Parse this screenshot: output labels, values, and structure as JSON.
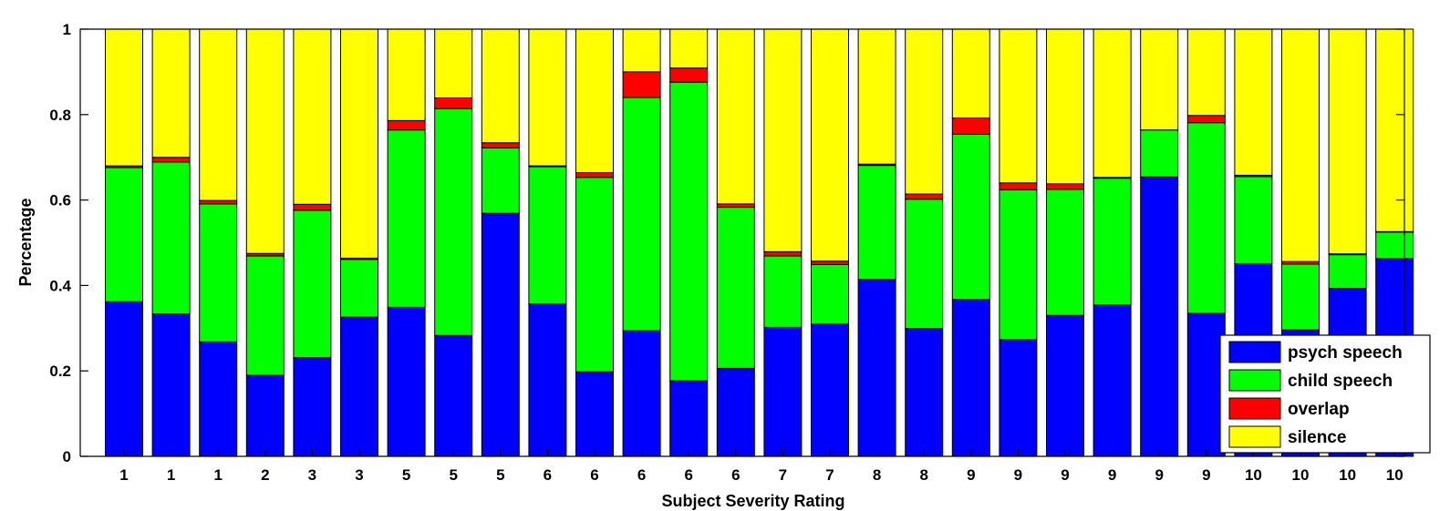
{
  "chart_data": {
    "type": "bar",
    "stacked": true,
    "xlabel": "Subject Severity Rating",
    "ylabel": "Percentage",
    "ylim": [
      0,
      1
    ],
    "yticks": [
      "0",
      "0.2",
      "0.4",
      "0.6",
      "0.8",
      "1"
    ],
    "categories": [
      "1",
      "1",
      "1",
      "2",
      "3",
      "3",
      "5",
      "5",
      "5",
      "6",
      "6",
      "6",
      "6",
      "6",
      "7",
      "7",
      "8",
      "8",
      "9",
      "9",
      "9",
      "9",
      "9",
      "9",
      "10",
      "10",
      "10",
      "10"
    ],
    "series": [
      {
        "name": "psych speech",
        "color": "#0000ff",
        "values": [
          0.362,
          0.333,
          0.268,
          0.19,
          0.231,
          0.326,
          0.349,
          0.283,
          0.569,
          0.357,
          0.198,
          0.294,
          0.177,
          0.206,
          0.302,
          0.31,
          0.414,
          0.299,
          0.367,
          0.273,
          0.33,
          0.354,
          0.654,
          0.335,
          0.451,
          0.296,
          0.393,
          0.463
        ]
      },
      {
        "name": "child speech",
        "color": "#00ff00",
        "values": [
          0.314,
          0.356,
          0.323,
          0.279,
          0.345,
          0.135,
          0.415,
          0.531,
          0.153,
          0.321,
          0.455,
          0.546,
          0.699,
          0.377,
          0.167,
          0.139,
          0.267,
          0.303,
          0.387,
          0.351,
          0.295,
          0.297,
          0.11,
          0.446,
          0.204,
          0.154,
          0.079,
          0.062
        ]
      },
      {
        "name": "overlap",
        "color": "#ff0000",
        "values": [
          0.004,
          0.011,
          0.008,
          0.006,
          0.014,
          0.003,
          0.022,
          0.025,
          0.012,
          0.002,
          0.011,
          0.06,
          0.033,
          0.008,
          0.01,
          0.008,
          0.003,
          0.012,
          0.038,
          0.016,
          0.013,
          0.002,
          0.0,
          0.017,
          0.003,
          0.006,
          0.002,
          0.001
        ]
      },
      {
        "name": "silence",
        "color": "#ffff00",
        "values": [
          0.32,
          0.3,
          0.401,
          0.525,
          0.41,
          0.536,
          0.214,
          0.161,
          0.266,
          0.32,
          0.336,
          0.1,
          0.091,
          0.409,
          0.521,
          0.543,
          0.316,
          0.386,
          0.208,
          0.36,
          0.362,
          0.347,
          0.236,
          0.202,
          0.342,
          0.544,
          0.526,
          0.474
        ]
      }
    ],
    "legend": {
      "position": "bottom-right",
      "entries": [
        "psych speech",
        "child speech",
        "overlap",
        "silence"
      ]
    },
    "grid": false
  }
}
